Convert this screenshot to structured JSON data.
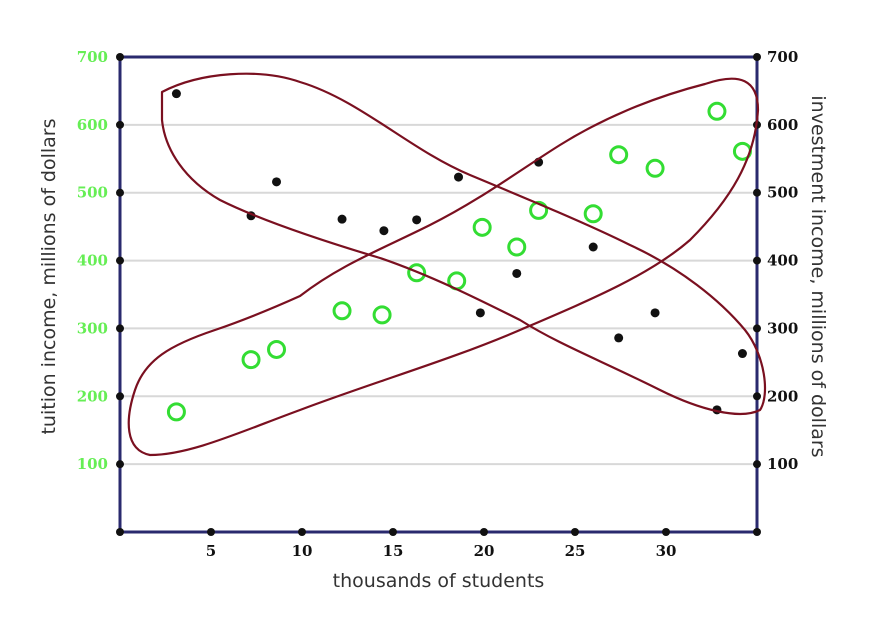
{
  "chart_data": {
    "type": "scatter",
    "title": "",
    "xlabel": "thousands of students",
    "ylabel_left": "tuition income, millions of dollars",
    "ylabel_right": "investment income, millions of dollars",
    "xlim": [
      0,
      35
    ],
    "ylim": [
      0,
      700
    ],
    "x_ticks": [
      5,
      10,
      15,
      20,
      25,
      30
    ],
    "x_tick_labels": [
      "5",
      "10",
      "15",
      "20",
      "25",
      "30"
    ],
    "y_ticks": [
      100,
      200,
      300,
      400,
      500,
      600,
      700
    ],
    "y_tick_labels_left": [
      "100",
      "200",
      "300",
      "400",
      "500",
      "600",
      "700"
    ],
    "y_tick_labels_right": [
      "100",
      "200",
      "300",
      "400",
      "500",
      "600",
      "700"
    ],
    "grid": "horizontal",
    "series": [
      {
        "axis": "left",
        "marker": "open-circle",
        "color": "#33dd33",
        "x": [
          3.1,
          7.2,
          8.6,
          12.2,
          14.4,
          16.3,
          18.5,
          19.9,
          21.8,
          23.0,
          26.0,
          27.4,
          29.4,
          32.8,
          34.2
        ],
        "y": [
          177,
          254,
          269,
          326,
          320,
          382,
          370,
          449,
          420,
          474,
          469,
          556,
          536,
          620,
          561
        ]
      },
      {
        "axis": "right",
        "marker": "filled-dot",
        "color": "#111111",
        "x": [
          3.1,
          7.2,
          8.6,
          12.2,
          14.5,
          16.3,
          18.6,
          19.8,
          21.8,
          23.0,
          26.0,
          27.4,
          29.4,
          32.8,
          34.2
        ],
        "y": [
          646,
          466,
          516,
          461,
          444,
          460,
          523,
          323,
          381,
          545,
          420,
          286,
          323,
          180,
          263
        ]
      }
    ],
    "colors": {
      "frame": "#2a2a6e",
      "grid": "#d8d8d8",
      "left_axis_labels": "#66ee55",
      "right_axis_labels": "#111111",
      "annotation": "#7a1020"
    }
  }
}
